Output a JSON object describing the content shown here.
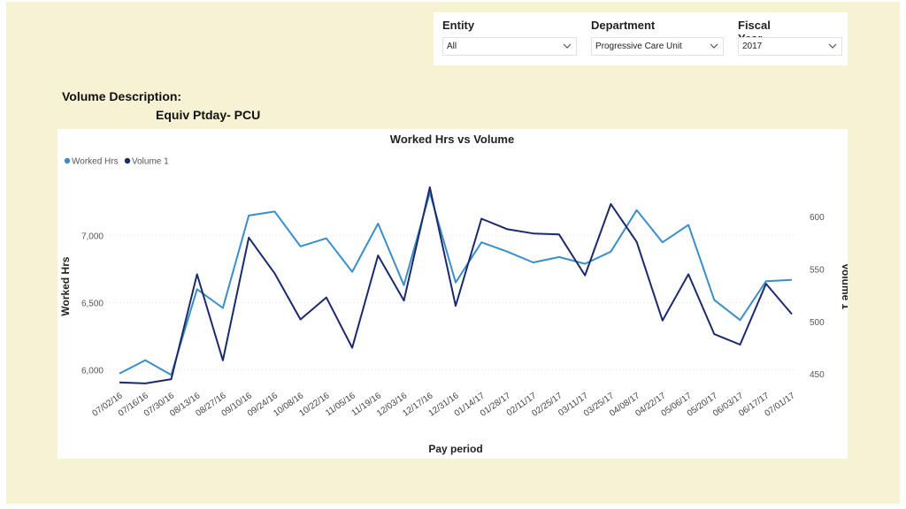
{
  "filters": [
    {
      "label": "Entity",
      "value": "All"
    },
    {
      "label": "Department",
      "value": "Progressive Care Unit"
    },
    {
      "label": "Fiscal Year",
      "value": "2017"
    }
  ],
  "volume_description": {
    "label": "Volume Description:",
    "value": "Equiv Ptday- PCU"
  },
  "colors": {
    "worked_hrs": "#3a8fc9",
    "volume": "#1b2a6b",
    "background": "#f7f2d3",
    "grid": "#e6e6e6"
  },
  "chart_data": {
    "type": "line",
    "title": "Worked Hrs vs Volume",
    "xlabel": "Pay period",
    "ylabel": "Worked Hrs",
    "y2label": "Volume 1",
    "legend_position": "top-left",
    "grid": true,
    "ylim": [
      5850,
      7400
    ],
    "y2lim": [
      435,
      633
    ],
    "yticks": [
      6000,
      6500,
      7000
    ],
    "yticklabels": [
      "6,000",
      "6,500",
      "7,000"
    ],
    "y2ticks": [
      450,
      500,
      550,
      600
    ],
    "y2ticklabels": [
      "450",
      "500",
      "550",
      "600"
    ],
    "x": [
      "07/02/16",
      "07/16/16",
      "07/30/16",
      "08/13/16",
      "08/27/16",
      "09/10/16",
      "09/24/16",
      "10/08/16",
      "10/22/16",
      "11/05/16",
      "11/19/16",
      "12/03/16",
      "12/17/16",
      "12/31/16",
      "01/14/17",
      "01/28/17",
      "02/11/17",
      "02/25/17",
      "03/11/17",
      "03/25/17",
      "04/08/17",
      "04/22/17",
      "05/06/17",
      "05/20/17",
      "06/03/17",
      "06/17/17",
      "07/01/17"
    ],
    "series": [
      {
        "name": "Worked Hrs",
        "axis": "left",
        "values": [
          5970,
          6070,
          5960,
          6600,
          6460,
          7150,
          7180,
          6920,
          6980,
          6730,
          7090,
          6630,
          7320,
          6650,
          6950,
          6880,
          6800,
          6840,
          6790,
          6880,
          7190,
          6950,
          7080,
          6520,
          6370,
          6660,
          6670
        ]
      },
      {
        "name": "Volume 1",
        "axis": "right",
        "values": [
          442,
          441,
          445,
          545,
          463,
          580,
          546,
          502,
          523,
          475,
          563,
          520,
          628,
          515,
          598,
          588,
          584,
          583,
          544,
          612,
          576,
          501,
          545,
          488,
          478,
          536,
          507
        ]
      }
    ]
  }
}
